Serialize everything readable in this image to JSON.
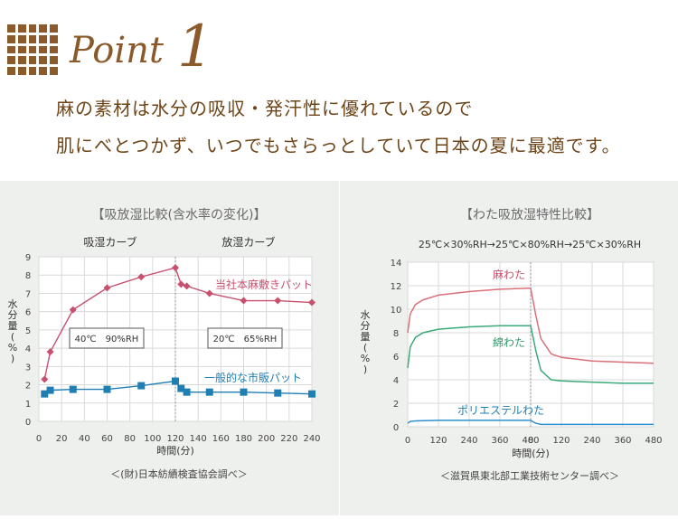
{
  "header": {
    "point_word": "Point",
    "point_number": "1",
    "line1": "麻の素材は水分の吸収・発汗性に優れているので",
    "line2": "肌にべとつかず、いつでもさらっとしていて日本の夏に最適です。"
  },
  "colors": {
    "brown": "#8a5a2b",
    "pink": "#c8506e",
    "blue": "#1f7fb3",
    "red_line": "#d9707a",
    "green_line": "#3aaa7a",
    "blue_line": "#2f8fce"
  },
  "chart_data": [
    {
      "type": "line",
      "title": "【吸放湿比較(含水率の変化)】",
      "section_labels": [
        "吸湿カーブ",
        "放湿カーブ"
      ],
      "condition_labels": [
        "40℃　90%RH",
        "20℃　65%RH"
      ],
      "xlabel": "時間(分)",
      "ylabel": "水分量(%)",
      "xlim": [
        0,
        240
      ],
      "ylim": [
        0,
        9
      ],
      "x_ticks": [
        0,
        20,
        40,
        60,
        80,
        100,
        120,
        140,
        160,
        180,
        200,
        220,
        240
      ],
      "y_ticks": [
        0,
        1,
        2,
        3,
        4,
        5,
        6,
        7,
        8,
        9
      ],
      "grid": true,
      "series": [
        {
          "name": "当社本麻敷きパット",
          "marker": "diamond",
          "x": [
            5,
            10,
            30,
            60,
            90,
            120,
            125,
            130,
            150,
            180,
            210,
            240
          ],
          "y": [
            2.3,
            3.8,
            6.1,
            7.3,
            7.9,
            8.4,
            7.5,
            7.4,
            7.0,
            6.6,
            6.6,
            6.5
          ]
        },
        {
          "name": "一般的な市販パット",
          "marker": "square",
          "x": [
            5,
            10,
            30,
            60,
            90,
            120,
            125,
            130,
            150,
            180,
            210,
            240
          ],
          "y": [
            1.5,
            1.7,
            1.75,
            1.75,
            1.95,
            2.2,
            1.8,
            1.6,
            1.6,
            1.6,
            1.55,
            1.5
          ]
        }
      ],
      "source": "＜(財)日本紡績検査協会調べ＞"
    },
    {
      "type": "line",
      "title": "【わた吸放湿特性比較】",
      "condition": "25℃×30%RH→25℃×80%RH→25℃×30%RH",
      "xlabel": "時間(分)",
      "ylabel": "水分量(%)",
      "ylim": [
        0,
        14
      ],
      "x_tick_labels": [
        "0",
        "120",
        "240",
        "360",
        "480",
        "0",
        "120",
        "240",
        "360",
        "480"
      ],
      "y_ticks": [
        0,
        2,
        4,
        6,
        8,
        10,
        12,
        14
      ],
      "grid": true,
      "series": [
        {
          "name": "麻わた",
          "x": [
            0,
            10,
            30,
            60,
            120,
            240,
            360,
            480,
            480,
            500,
            520,
            560,
            600,
            720,
            840,
            960
          ],
          "y": [
            8.0,
            9.6,
            10.4,
            10.8,
            11.2,
            11.5,
            11.7,
            11.8,
            11.8,
            9.5,
            7.5,
            6.2,
            5.9,
            5.6,
            5.5,
            5.4
          ]
        },
        {
          "name": "綿わた",
          "x": [
            0,
            10,
            30,
            60,
            120,
            240,
            360,
            480,
            480,
            500,
            520,
            560,
            600,
            720,
            840,
            960
          ],
          "y": [
            5.0,
            6.8,
            7.6,
            8.0,
            8.3,
            8.5,
            8.6,
            8.6,
            8.6,
            6.5,
            4.8,
            4.0,
            3.9,
            3.8,
            3.7,
            3.7
          ]
        },
        {
          "name": "ポリエステルわた",
          "x": [
            0,
            10,
            30,
            120,
            240,
            360,
            480,
            480,
            500,
            520,
            600,
            720,
            840,
            960
          ],
          "y": [
            0.3,
            0.45,
            0.5,
            0.55,
            0.55,
            0.55,
            0.55,
            0.55,
            0.3,
            0.2,
            0.2,
            0.2,
            0.2,
            0.2
          ]
        }
      ],
      "source": "＜滋賀県東北部工業技術センター調べ＞"
    }
  ]
}
